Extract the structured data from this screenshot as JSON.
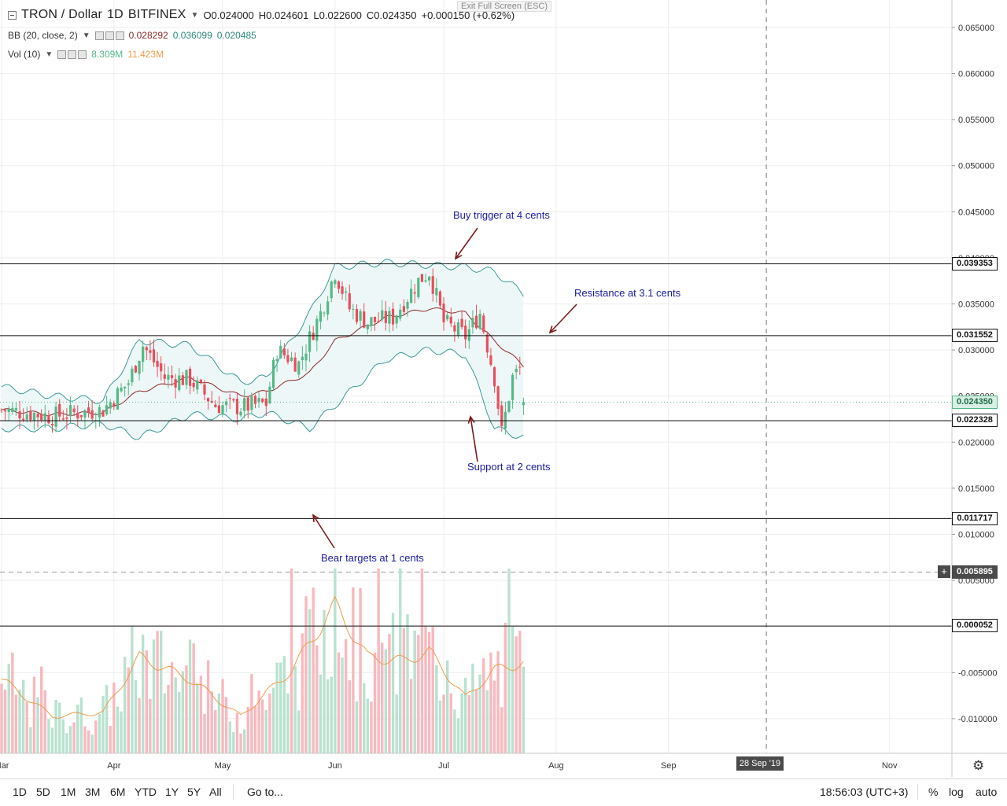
{
  "header": {
    "symbol_title": "TRON / Dollar",
    "interval": "1D",
    "exchange": "BITFINEX",
    "open": "O0.024000",
    "high": "H0.024601",
    "low": "L0.022600",
    "close": "C0.024350",
    "change": "+0.000150 (+0.62%)",
    "exit_fullscreen": "Exit Full Screen (ESC)"
  },
  "indicators": {
    "bb": {
      "label": "BB (20, close, 2)",
      "basis": "0.028292",
      "upper": "0.036099",
      "lower": "0.020485"
    },
    "vol": {
      "label": "Vol (10)",
      "value": "8.309M",
      "ma": "11.423M"
    }
  },
  "price_axis": {
    "ticks": [
      "0.065000",
      "0.060000",
      "0.055000",
      "0.050000",
      "0.045000",
      "0.040000",
      "0.035000",
      "0.030000",
      "0.025000",
      "0.020000",
      "0.015000",
      "0.010000",
      "0.005000",
      "0.000000",
      "-0.005000",
      "-0.010000"
    ],
    "tags": {
      "level_high": "0.039353",
      "level_resistance": "0.031552",
      "last_price": "0.024350",
      "level_support": "0.022328",
      "level_bear": "0.011717",
      "crosshair": "0.005895",
      "level_zero": "0.000052"
    }
  },
  "time_axis": {
    "labels": [
      "Mar",
      "Apr",
      "May",
      "Jun",
      "Jul",
      "Aug",
      "Sep",
      "Nov"
    ],
    "crosshair_date": "28 Sep '19"
  },
  "annotations": {
    "buy_trigger": "Buy trigger at 4 cents",
    "resistance": "Resistance at 3.1 cents",
    "support": "Support at 2 cents",
    "bear_targets": "Bear targets at 1 cents"
  },
  "bottom_bar": {
    "timeframes": [
      "1D",
      "5D",
      "1M",
      "3M",
      "6M",
      "YTD",
      "1Y",
      "5Y",
      "All"
    ],
    "goto": "Go to...",
    "clock": "18:56:03 (UTC+3)",
    "percent": "%",
    "log": "log",
    "auto": "auto"
  },
  "colors": {
    "up": "#53b987",
    "down": "#eb4d5c",
    "vol_up": "#b8e2cf",
    "vol_down": "#f8b9bf",
    "bb_band": "#3b9a9a",
    "bb_basis": "#8b2a2a",
    "bb_fill": "#eef7f7",
    "vol_ma": "#f09a4a",
    "annotation": "#1a1a9e",
    "arrow": "#7a1a1a",
    "level": "#111111"
  },
  "chart_data": {
    "type": "candlestick",
    "title": "TRON / Dollar",
    "exchange": "BITFINEX",
    "interval": "1D",
    "ylim": [
      -0.014,
      0.068
    ],
    "x_start": "2019-03-01",
    "horizontal_levels": [
      0.039353,
      0.031552,
      0.022328,
      0.011717,
      5.2e-05
    ],
    "last_price": 0.02435,
    "close_series": {
      "x": [
        "2019-03-01",
        "2019-03-08",
        "2019-03-15",
        "2019-03-22",
        "2019-03-29",
        "2019-04-05",
        "2019-04-09",
        "2019-04-15",
        "2019-04-22",
        "2019-04-29",
        "2019-05-06",
        "2019-05-13",
        "2019-05-16",
        "2019-05-22",
        "2019-05-28",
        "2019-06-01",
        "2019-06-05",
        "2019-06-10",
        "2019-06-17",
        "2019-06-24",
        "2019-06-27",
        "2019-07-01",
        "2019-07-07",
        "2019-07-11",
        "2019-07-15",
        "2019-07-17",
        "2019-07-20",
        "2019-07-22",
        "2019-07-23"
      ],
      "values": [
        0.0235,
        0.0232,
        0.0228,
        0.0232,
        0.0235,
        0.0265,
        0.0305,
        0.027,
        0.0268,
        0.024,
        0.0238,
        0.0242,
        0.03,
        0.0285,
        0.034,
        0.0385,
        0.0345,
        0.033,
        0.0335,
        0.0375,
        0.0385,
        0.033,
        0.0315,
        0.034,
        0.027,
        0.021,
        0.027,
        0.028,
        0.02435
      ]
    },
    "bb_upper": {
      "x": [
        "2019-03-01",
        "2019-03-15",
        "2019-03-29",
        "2019-04-08",
        "2019-04-22",
        "2019-05-06",
        "2019-05-13",
        "2019-05-25",
        "2019-06-01",
        "2019-06-15",
        "2019-06-27",
        "2019-07-07",
        "2019-07-15",
        "2019-07-23"
      ],
      "values": [
        0.026,
        0.025,
        0.0245,
        0.031,
        0.0305,
        0.0265,
        0.027,
        0.034,
        0.039,
        0.0395,
        0.0392,
        0.039,
        0.0385,
        0.0361
      ]
    },
    "bb_basis": {
      "x": [
        "2019-03-01",
        "2019-03-15",
        "2019-03-29",
        "2019-04-08",
        "2019-04-22",
        "2019-05-06",
        "2019-05-13",
        "2019-05-25",
        "2019-06-01",
        "2019-06-15",
        "2019-06-27",
        "2019-07-07",
        "2019-07-15",
        "2019-07-23"
      ],
      "values": [
        0.0235,
        0.023,
        0.0232,
        0.0255,
        0.027,
        0.025,
        0.0255,
        0.0275,
        0.031,
        0.0335,
        0.0345,
        0.034,
        0.031,
        0.0283
      ]
    },
    "bb_lower": {
      "x": [
        "2019-03-01",
        "2019-03-15",
        "2019-03-29",
        "2019-04-08",
        "2019-04-22",
        "2019-05-06",
        "2019-05-13",
        "2019-05-25",
        "2019-06-01",
        "2019-06-15",
        "2019-06-27",
        "2019-07-07",
        "2019-07-15",
        "2019-07-23"
      ],
      "values": [
        0.0215,
        0.0215,
        0.022,
        0.0205,
        0.023,
        0.0225,
        0.0232,
        0.0215,
        0.024,
        0.029,
        0.03,
        0.0295,
        0.0215,
        0.0205
      ]
    },
    "volume_ma": {
      "x": [
        "2019-03-01",
        "2019-03-15",
        "2019-03-29",
        "2019-04-08",
        "2019-04-22",
        "2019-05-06",
        "2019-05-20",
        "2019-06-01",
        "2019-06-10",
        "2019-06-20",
        "2019-06-27",
        "2019-07-07",
        "2019-07-15",
        "2019-07-23"
      ],
      "values": [
        0.4,
        0.2,
        0.22,
        0.52,
        0.4,
        0.2,
        0.45,
        0.8,
        0.52,
        0.5,
        0.55,
        0.3,
        0.45,
        0.49
      ]
    }
  }
}
